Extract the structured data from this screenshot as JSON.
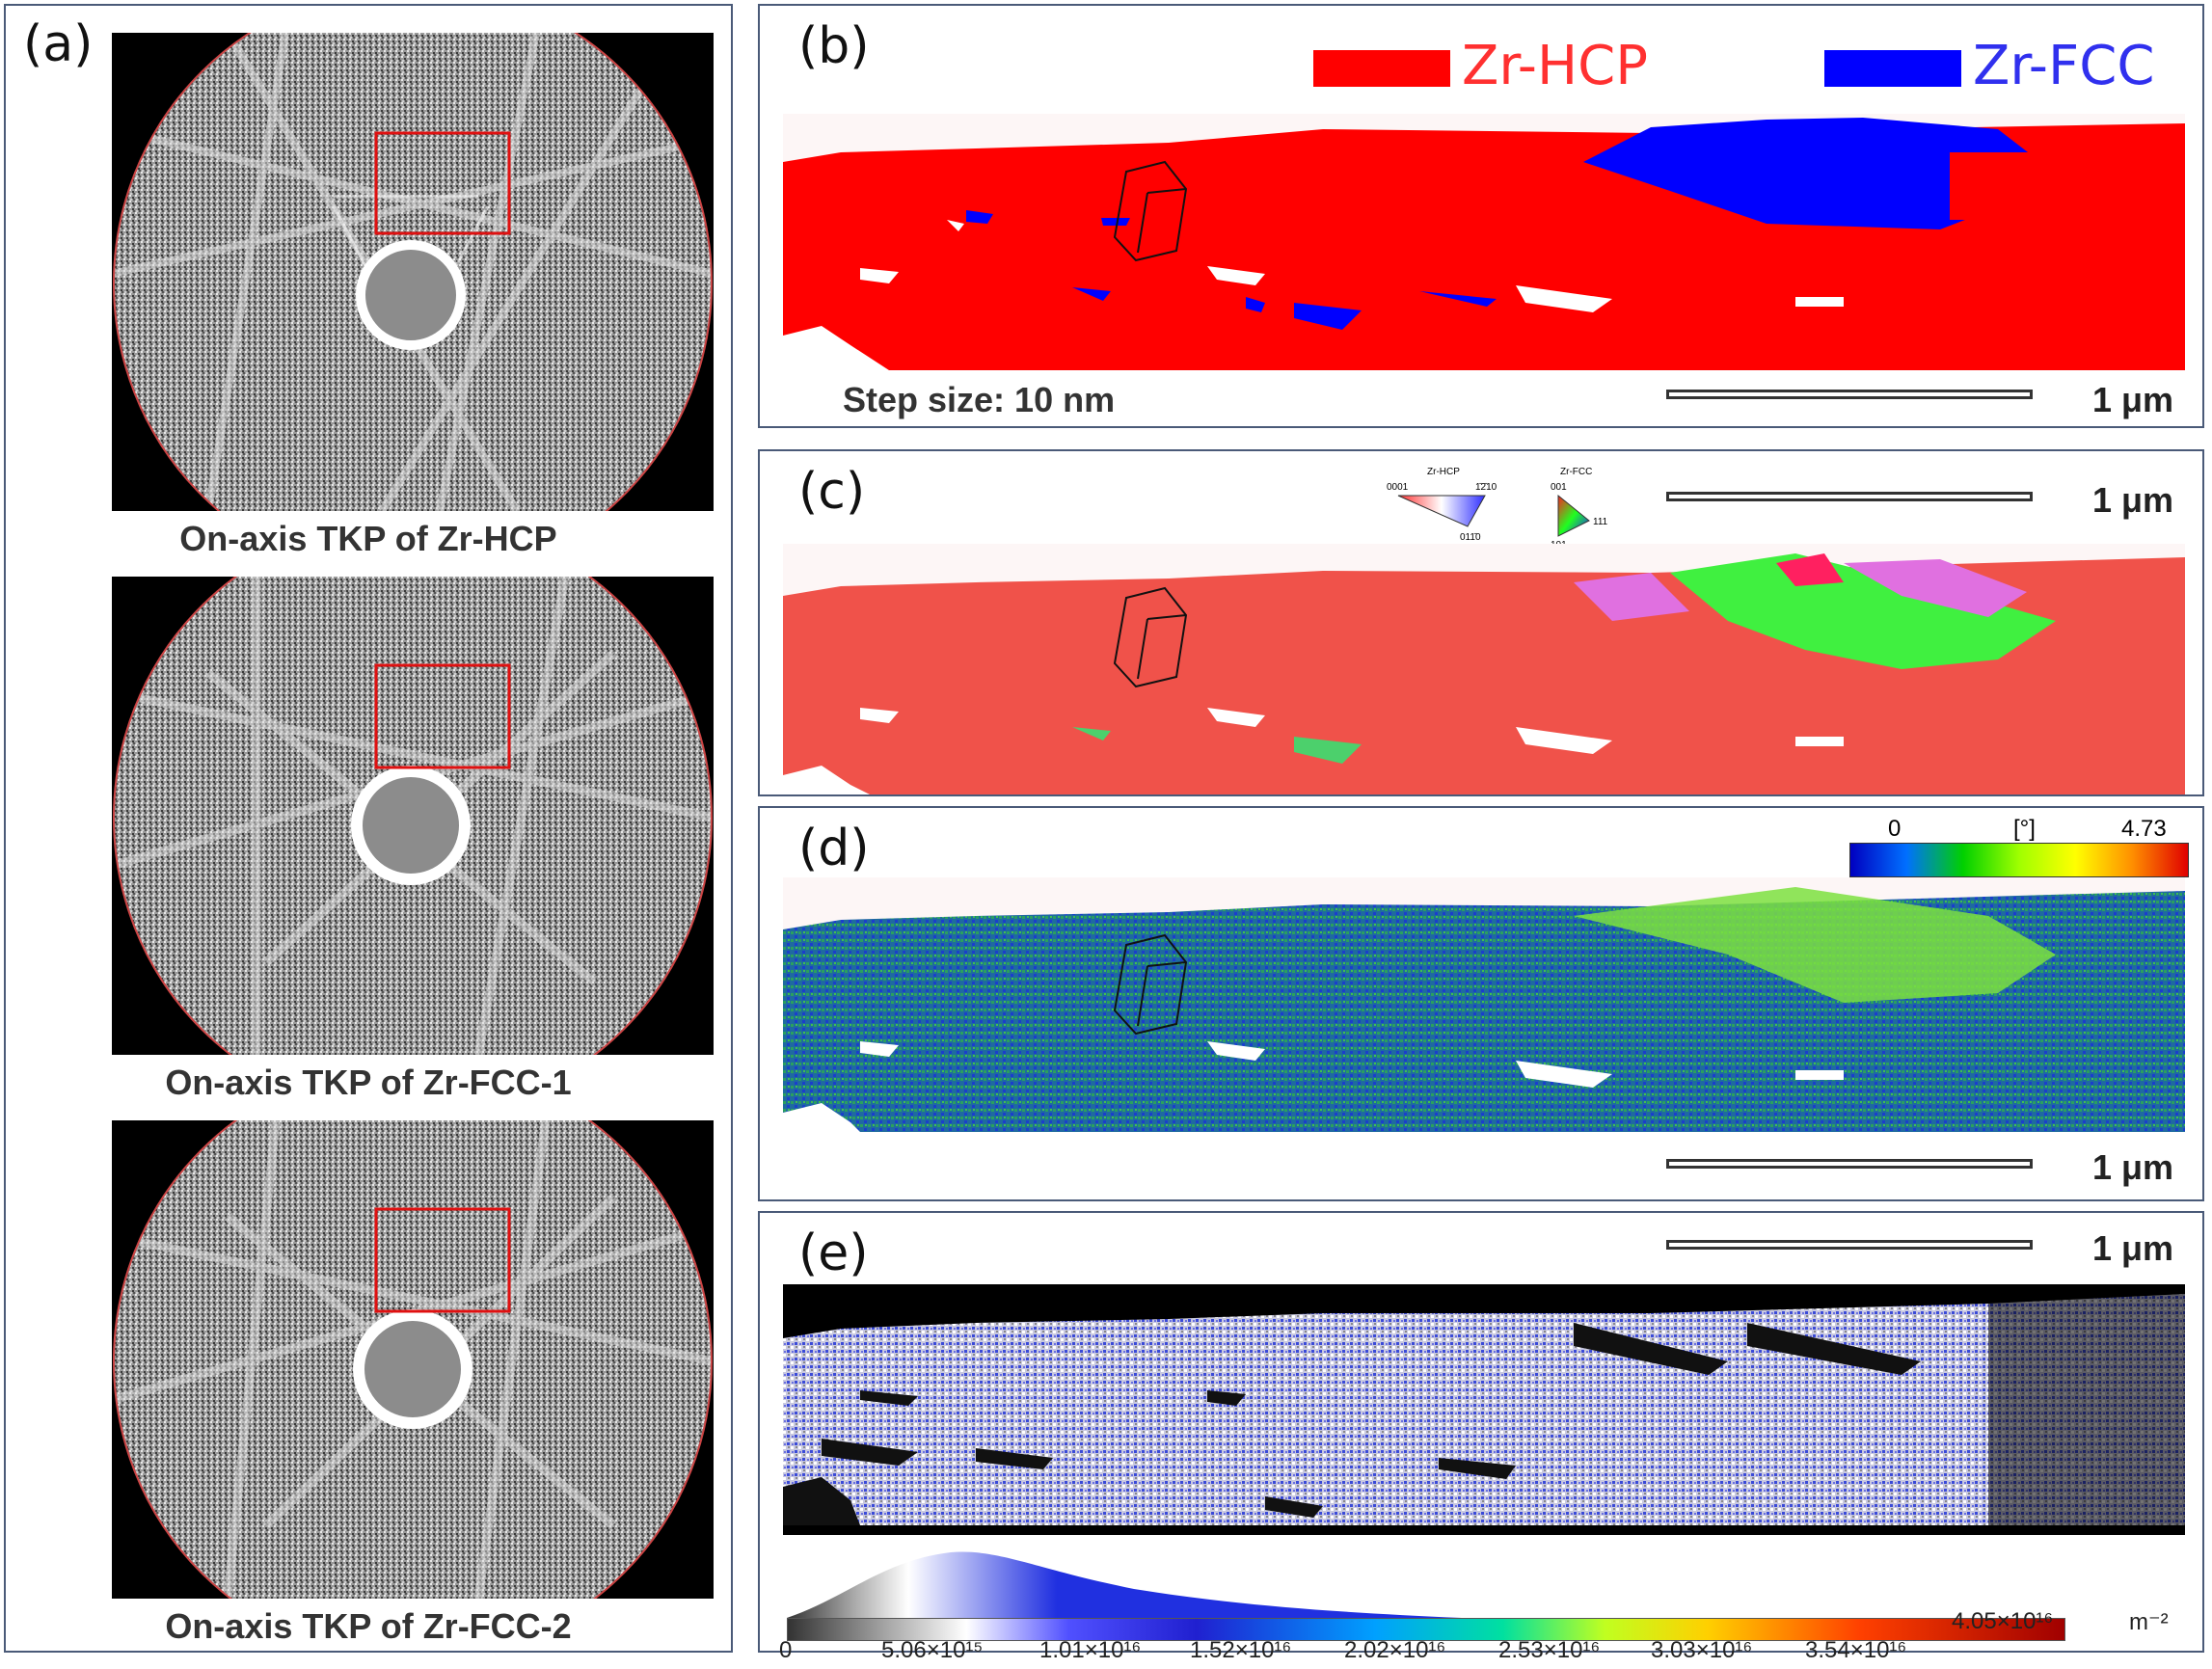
{
  "panels": {
    "a": {
      "label": "(a)"
    },
    "b": {
      "label": "(b)"
    },
    "c": {
      "label": "(c)"
    },
    "d": {
      "label": "(d)"
    },
    "e": {
      "label": "(e)"
    }
  },
  "tkp_captions": [
    "On-axis TKP of Zr-HCP",
    "On-axis TKP of Zr-FCC-1",
    "On-axis TKP of Zr-FCC-2"
  ],
  "legend": {
    "hcp": {
      "label": "Zr-HCP",
      "color": "#ff0000"
    },
    "fcc": {
      "label": "Zr-FCC",
      "color": "#0000ff"
    }
  },
  "step_size": "Step size: 10 nm",
  "scale_label": "1 μm",
  "ipf_keys": {
    "hcp": {
      "title": "Zr-HCP",
      "c1": "0001",
      "c2": "1̄2̄10",
      "c3": "011̄0"
    },
    "fcc": {
      "title": "Zr-FCC",
      "c1": "001",
      "c2": "111",
      "c3": "101"
    }
  },
  "kam_colorbar": {
    "min": "0",
    "unit": "[°]",
    "max": "4.73"
  },
  "gnd_colorbar": {
    "ticks": [
      "0",
      "5.06×10¹⁵",
      "1.01×10¹⁶",
      "1.52×10¹⁶",
      "2.02×10¹⁶",
      "2.53×10¹⁶",
      "3.03×10¹⁶",
      "3.54×10¹⁶",
      "4.05×10¹⁶"
    ],
    "unit": "m⁻²"
  }
}
